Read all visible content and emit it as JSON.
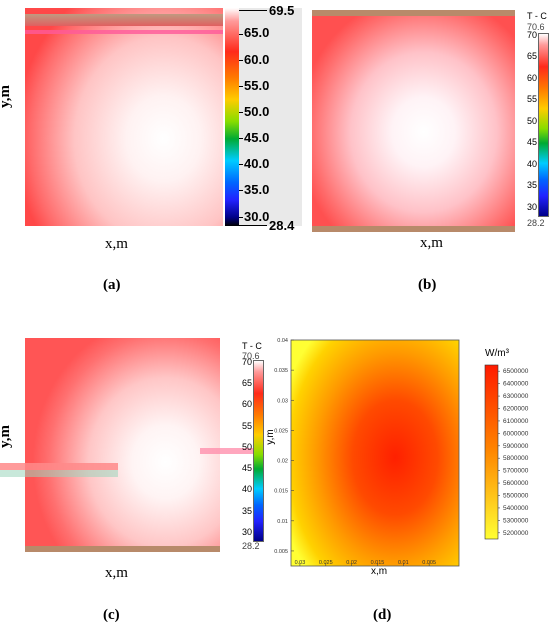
{
  "panels": [
    {
      "id": "a",
      "label": "(a)",
      "chart_data": {
        "type": "heatmap",
        "xlabel": "x,m",
        "ylabel": "y,m",
        "colorbar": {
          "title": "",
          "max_label": "69.5",
          "min_label": "28.4",
          "ticks": [
            "65.0",
            "60.0",
            "55.0",
            "50.0",
            "45.0",
            "40.0",
            "35.0",
            "30.0"
          ],
          "range": [
            28.4,
            69.5
          ]
        },
        "field_range": [
          64.0,
          69.5
        ]
      }
    },
    {
      "id": "b",
      "label": "(b)",
      "chart_data": {
        "type": "heatmap",
        "xlabel": "x,m",
        "ylabel": "",
        "colorbar": {
          "title": "T - C",
          "max_label": "70.6",
          "min_label": "28.2",
          "ticks": [
            "70",
            "65",
            "60",
            "55",
            "50",
            "45",
            "40",
            "35",
            "30"
          ],
          "range": [
            28.2,
            70.6
          ]
        },
        "field_range": [
          64.0,
          70.6
        ]
      }
    },
    {
      "id": "c",
      "label": "(c)",
      "chart_data": {
        "type": "heatmap",
        "xlabel": "x,m",
        "ylabel": "y,m",
        "colorbar": {
          "title": "T - C",
          "max_label": "70.6",
          "min_label": "28.2",
          "ticks": [
            "70",
            "65",
            "60",
            "55",
            "50",
            "45",
            "40",
            "35",
            "30"
          ],
          "range": [
            28.2,
            70.6
          ]
        },
        "field_range": [
          64.0,
          70.6
        ]
      }
    },
    {
      "id": "d",
      "label": "(d)",
      "chart_data": {
        "type": "heatmap",
        "xlabel": "x,m",
        "ylabel": "y,m",
        "x_ticks": [
          "0.03",
          "0.025",
          "0.02",
          "0.015",
          "0.01",
          "0.005"
        ],
        "y_ticks": [
          "0.04",
          "0.035",
          "0.03",
          "0.025",
          "0.02",
          "0.015",
          "0.01",
          "0.005"
        ],
        "colorbar": {
          "title": "W/m³",
          "ticks": [
            "6500000",
            "6400000",
            "6300000",
            "6200000",
            "6100000",
            "6000000",
            "5900000",
            "5800000",
            "5700000",
            "5600000",
            "5500000",
            "5400000",
            "5300000",
            "5200000"
          ],
          "range": [
            5150000,
            6550000
          ]
        }
      }
    }
  ],
  "colors": {
    "hot": "#ff2a2a",
    "warm": "#ffffff",
    "border_dark": "#b98a6a",
    "yellow": "#ffff33"
  }
}
